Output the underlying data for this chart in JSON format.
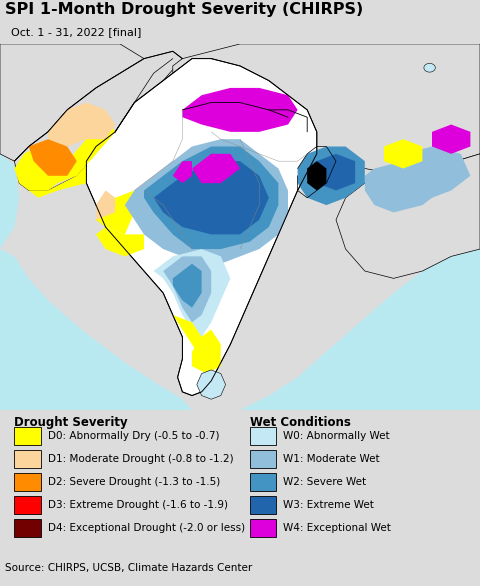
{
  "title": "SPI 1-Month Drought Severity (CHIRPS)",
  "subtitle": "Oct. 1 - 31, 2022 [final]",
  "source": "Source: CHIRPS, UCSB, Climate Hazards Center",
  "ocean_color": "#b8e8f0",
  "land_bg_color": "#dcdcdc",
  "title_fontsize": 11.5,
  "subtitle_fontsize": 8.0,
  "source_fontsize": 7.5,
  "legend_title_fontsize": 8.5,
  "legend_fontsize": 7.5,
  "drought_labels": [
    "D0: Abnormally Dry (-0.5 to -0.7)",
    "D1: Moderate Drought (-0.8 to -1.2)",
    "D2: Severe Drought (-1.3 to -1.5)",
    "D3: Extreme Drought (-1.6 to -1.9)",
    "D4: Exceptional Drought (-2.0 or less)"
  ],
  "drought_colors": [
    "#ffff00",
    "#fcd59c",
    "#ff8c00",
    "#ff0000",
    "#730000"
  ],
  "wet_labels": [
    "W0: Abnormally Wet",
    "W1: Moderate Wet",
    "W2: Severe Wet",
    "W3: Extreme Wet",
    "W4: Exceptional Wet"
  ],
  "wet_colors": [
    "#c5e8f5",
    "#91bfdb",
    "#4393c3",
    "#2166ac",
    "#dd00dd"
  ],
  "background_color": "#dcdcdc",
  "source_bg": "#c8c8c8",
  "fig_width": 4.8,
  "fig_height": 5.86,
  "dpi": 100
}
